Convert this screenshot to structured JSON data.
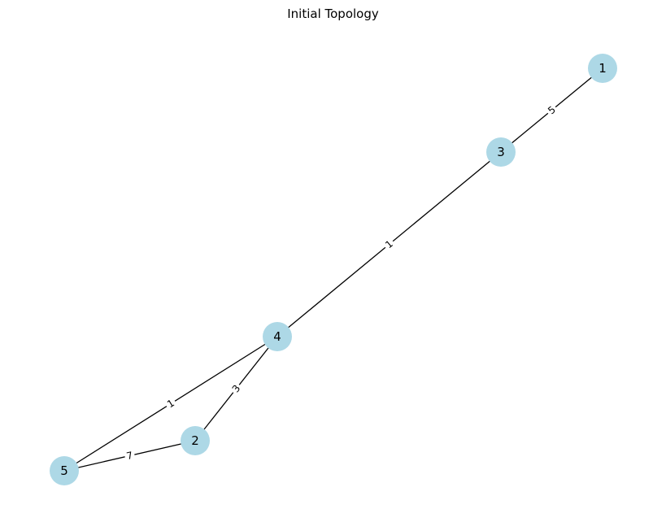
{
  "title": "Initial Topology",
  "graph": {
    "node_color": "#add8e6",
    "edge_color": "#000000",
    "nodes": [
      {
        "id": "1",
        "label": "1"
      },
      {
        "id": "3",
        "label": "3"
      },
      {
        "id": "4",
        "label": "4"
      },
      {
        "id": "2",
        "label": "2"
      },
      {
        "id": "5",
        "label": "5"
      }
    ],
    "edges": [
      {
        "source": "1",
        "target": "3",
        "weight": "5"
      },
      {
        "source": "3",
        "target": "4",
        "weight": "1"
      },
      {
        "source": "4",
        "target": "5",
        "weight": "1"
      },
      {
        "source": "4",
        "target": "2",
        "weight": "3"
      },
      {
        "source": "5",
        "target": "2",
        "weight": "7"
      }
    ]
  }
}
